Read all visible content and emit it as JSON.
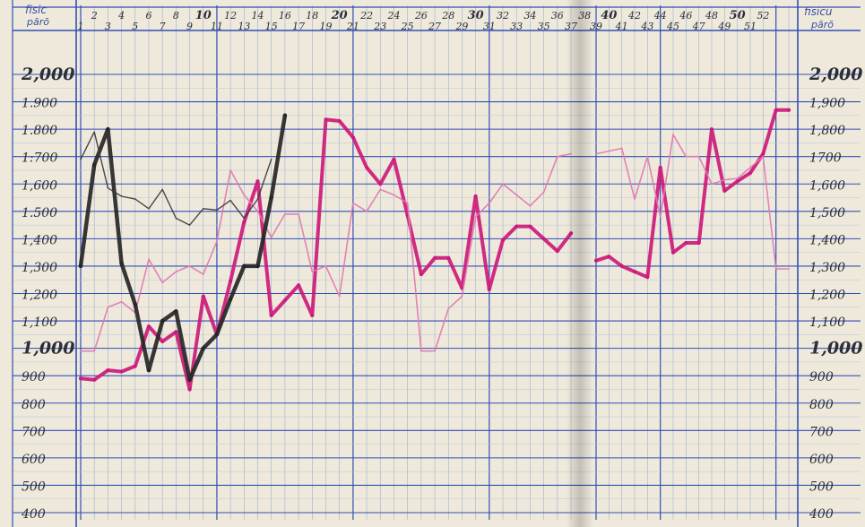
{
  "header": {
    "left_label_top": "fisic",
    "left_label_bottom": "pārō",
    "right_label_top": "fisicū",
    "right_label_bottom": "pārō"
  },
  "chart_data": {
    "type": "line",
    "title": "",
    "x_label": "",
    "y_label": "",
    "y_ticks": [
      2000,
      1900,
      1800,
      1700,
      1600,
      1500,
      1400,
      1300,
      1200,
      1100,
      1000,
      900,
      800,
      700,
      600,
      500,
      400
    ],
    "y_tick_labels_left": [
      "2,000",
      "1.900",
      "1.800",
      "1:700",
      "1,600",
      "1.500",
      "1,400",
      "1,300",
      "1,200",
      "1,100",
      "1,000",
      "900",
      "800",
      "700",
      "600",
      "500",
      "400"
    ],
    "y_tick_labels_right": [
      "2,000",
      "1,900",
      "1,800",
      "1700",
      "1,600",
      "1,500",
      "1,400",
      "1,300",
      "1,200",
      "1,100",
      "1,000",
      "900",
      "800",
      "700",
      "600",
      "500",
      "400"
    ],
    "ylim": [
      380,
      2090
    ],
    "xlim": [
      0.5,
      52.5
    ],
    "x_ticks_top": [
      2,
      4,
      6,
      8,
      10,
      12,
      14,
      16,
      18,
      20,
      22,
      24,
      26,
      28,
      30,
      32,
      34,
      36,
      38,
      40,
      42,
      44,
      46,
      48,
      50,
      52
    ],
    "x_ticks_bottom": [
      1,
      3,
      5,
      7,
      9,
      11,
      13,
      15,
      17,
      19,
      21,
      23,
      25,
      27,
      29,
      31,
      33,
      35,
      37,
      39,
      41,
      43,
      45,
      47,
      49,
      51
    ],
    "series": [
      {
        "color": "#cc1a7a",
        "width": 4,
        "segments": [
          [
            [
              1,
              890
            ],
            [
              2,
              885
            ],
            [
              3,
              920
            ],
            [
              4,
              915
            ],
            [
              5,
              935
            ],
            [
              6,
              1080
            ],
            [
              7,
              1025
            ],
            [
              8,
              1060
            ],
            [
              9,
              850
            ],
            [
              10,
              1190
            ],
            [
              11,
              1050
            ],
            [
              12,
              1245
            ],
            [
              13,
              1460
            ],
            [
              14,
              1610
            ],
            [
              15,
              1120
            ],
            [
              16,
              1175
            ],
            [
              17,
              1230
            ],
            [
              18,
              1120
            ],
            [
              19,
              1835
            ],
            [
              20,
              1830
            ],
            [
              21,
              1770
            ],
            [
              22,
              1660
            ],
            [
              23,
              1600
            ],
            [
              24,
              1690
            ],
            [
              25,
              1485
            ],
            [
              26,
              1270
            ],
            [
              27,
              1330
            ],
            [
              28,
              1330
            ],
            [
              29,
              1220
            ],
            [
              30,
              1555
            ],
            [
              31,
              1215
            ],
            [
              32,
              1395
            ],
            [
              33,
              1445
            ],
            [
              34,
              1445
            ],
            [
              35,
              1400
            ],
            [
              36,
              1355
            ],
            [
              37,
              1420
            ]
          ],
          [
            [
              39,
              1320
            ],
            [
              40,
              1335
            ],
            [
              41,
              1300
            ],
            [
              42,
              1280
            ],
            [
              43,
              1260
            ],
            [
              44,
              1660
            ],
            [
              45,
              1350
            ],
            [
              46,
              1385
            ],
            [
              47,
              1385
            ],
            [
              48,
              1800
            ],
            [
              49,
              1575
            ],
            [
              50,
              1610
            ],
            [
              51,
              1640
            ],
            [
              52,
              1710
            ],
            [
              53,
              1870
            ],
            [
              54,
              1870
            ]
          ]
        ]
      },
      {
        "color": "#e07ab0",
        "width": 1.6,
        "segments": [
          [
            [
              1,
              990
            ],
            [
              2,
              990
            ],
            [
              3,
              1150
            ],
            [
              4,
              1170
            ],
            [
              5,
              1130
            ],
            [
              6,
              1325
            ],
            [
              7,
              1240
            ],
            [
              8,
              1280
            ],
            [
              9,
              1300
            ],
            [
              10,
              1270
            ],
            [
              11,
              1390
            ],
            [
              12,
              1650
            ],
            [
              13,
              1560
            ],
            [
              14,
              1500
            ],
            [
              15,
              1405
            ],
            [
              16,
              1490
            ],
            [
              17,
              1490
            ],
            [
              18,
              1280
            ],
            [
              19,
              1300
            ],
            [
              20,
              1190
            ],
            [
              21,
              1530
            ],
            [
              22,
              1500
            ],
            [
              23,
              1580
            ],
            [
              24,
              1560
            ],
            [
              25,
              1530
            ],
            [
              26,
              990
            ],
            [
              27,
              990
            ],
            [
              28,
              1145
            ],
            [
              29,
              1190
            ],
            [
              30,
              1480
            ],
            [
              31,
              1530
            ],
            [
              32,
              1600
            ],
            [
              33,
              1560
            ],
            [
              34,
              1520
            ],
            [
              35,
              1570
            ],
            [
              36,
              1700
            ],
            [
              37,
              1710
            ]
          ],
          [
            [
              39,
              1710
            ],
            [
              40,
              1720
            ],
            [
              41,
              1730
            ],
            [
              42,
              1545
            ],
            [
              43,
              1700
            ],
            [
              44,
              1480
            ],
            [
              45,
              1780
            ],
            [
              46,
              1700
            ],
            [
              47,
              1700
            ],
            [
              48,
              1600
            ],
            [
              49,
              1615
            ],
            [
              50,
              1620
            ],
            [
              51,
              1660
            ],
            [
              52,
              1700
            ],
            [
              53,
              1290
            ],
            [
              54,
              1290
            ]
          ]
        ]
      },
      {
        "color": "#262626",
        "width": 4.5,
        "segments": [
          [
            [
              1,
              1300
            ],
            [
              2,
              1670
            ],
            [
              3,
              1800
            ],
            [
              4,
              1310
            ],
            [
              5,
              1160
            ],
            [
              6,
              920
            ],
            [
              7,
              1100
            ],
            [
              8,
              1135
            ],
            [
              9,
              885
            ],
            [
              10,
              1000
            ],
            [
              11,
              1050
            ],
            [
              12,
              1180
            ],
            [
              13,
              1300
            ],
            [
              14,
              1300
            ],
            [
              15,
              1550
            ],
            [
              16,
              1850
            ]
          ]
        ]
      },
      {
        "color": "#3a3a3a",
        "width": 1.4,
        "segments": [
          [
            [
              1,
              1690
            ],
            [
              2,
              1790
            ],
            [
              3,
              1585
            ],
            [
              4,
              1555
            ],
            [
              5,
              1545
            ],
            [
              6,
              1510
            ],
            [
              7,
              1580
            ],
            [
              8,
              1475
            ],
            [
              9,
              1450
            ],
            [
              10,
              1510
            ],
            [
              11,
              1505
            ],
            [
              12,
              1540
            ],
            [
              13,
              1475
            ],
            [
              14,
              1545
            ],
            [
              15,
              1690
            ]
          ]
        ]
      }
    ]
  }
}
